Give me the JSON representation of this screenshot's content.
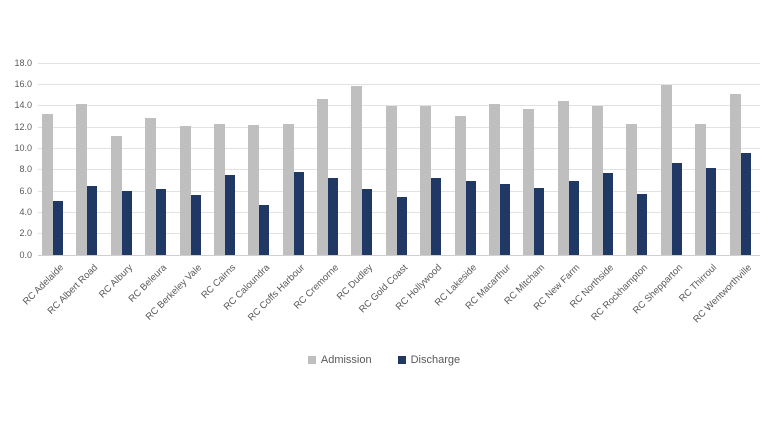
{
  "page": {
    "background": "#ffffff"
  },
  "chart_data": {
    "type": "bar",
    "title": "",
    "xlabel": "",
    "ylabel": "",
    "categories": [
      "RC Adelaide",
      "RC Albert Road",
      "RC Albury",
      "RC Beleura",
      "RC Berkeley Vale",
      "RC Cairns",
      "RC Caloundra",
      "RC Coffs Harbour",
      "RC Cremorne",
      "RC Dudley",
      "RC Gold Coast",
      "RC Hollywood",
      "RC Lakeside",
      "RC Macarthur",
      "RC Mitcham",
      "RC New Farm",
      "RC Northside",
      "RC Rockhampton",
      "RC Shepparton",
      "RC Thirroul",
      "RC Wentworthville"
    ],
    "series": [
      {
        "name": "Admission",
        "color": "#bfbfbf",
        "values": [
          13.2,
          14.2,
          11.2,
          12.8,
          12.1,
          12.3,
          12.2,
          12.3,
          14.6,
          15.8,
          14.0,
          14.0,
          13.0,
          14.2,
          13.7,
          14.4,
          14.0,
          12.3,
          15.9,
          12.3,
          15.1
        ]
      },
      {
        "name": "Discharge",
        "color": "#1f3864",
        "values": [
          5.1,
          6.5,
          6.0,
          6.2,
          5.6,
          7.5,
          4.7,
          7.8,
          7.2,
          6.2,
          5.4,
          7.2,
          6.9,
          6.7,
          6.3,
          6.9,
          7.7,
          5.7,
          8.6,
          8.2,
          9.6
        ]
      }
    ],
    "ylim": [
      0,
      18
    ],
    "ytick_step": 2,
    "ytick_labels": [
      "0.0",
      "2.0",
      "4.0",
      "6.0",
      "8.0",
      "10.0",
      "12.0",
      "14.0",
      "16.0",
      "18.0"
    ],
    "grid": true,
    "gridline_color": "#e2e2e2",
    "axis_line_color": "#d0d0d0",
    "tick_label_color": "#595959",
    "legend_position": "bottom"
  }
}
